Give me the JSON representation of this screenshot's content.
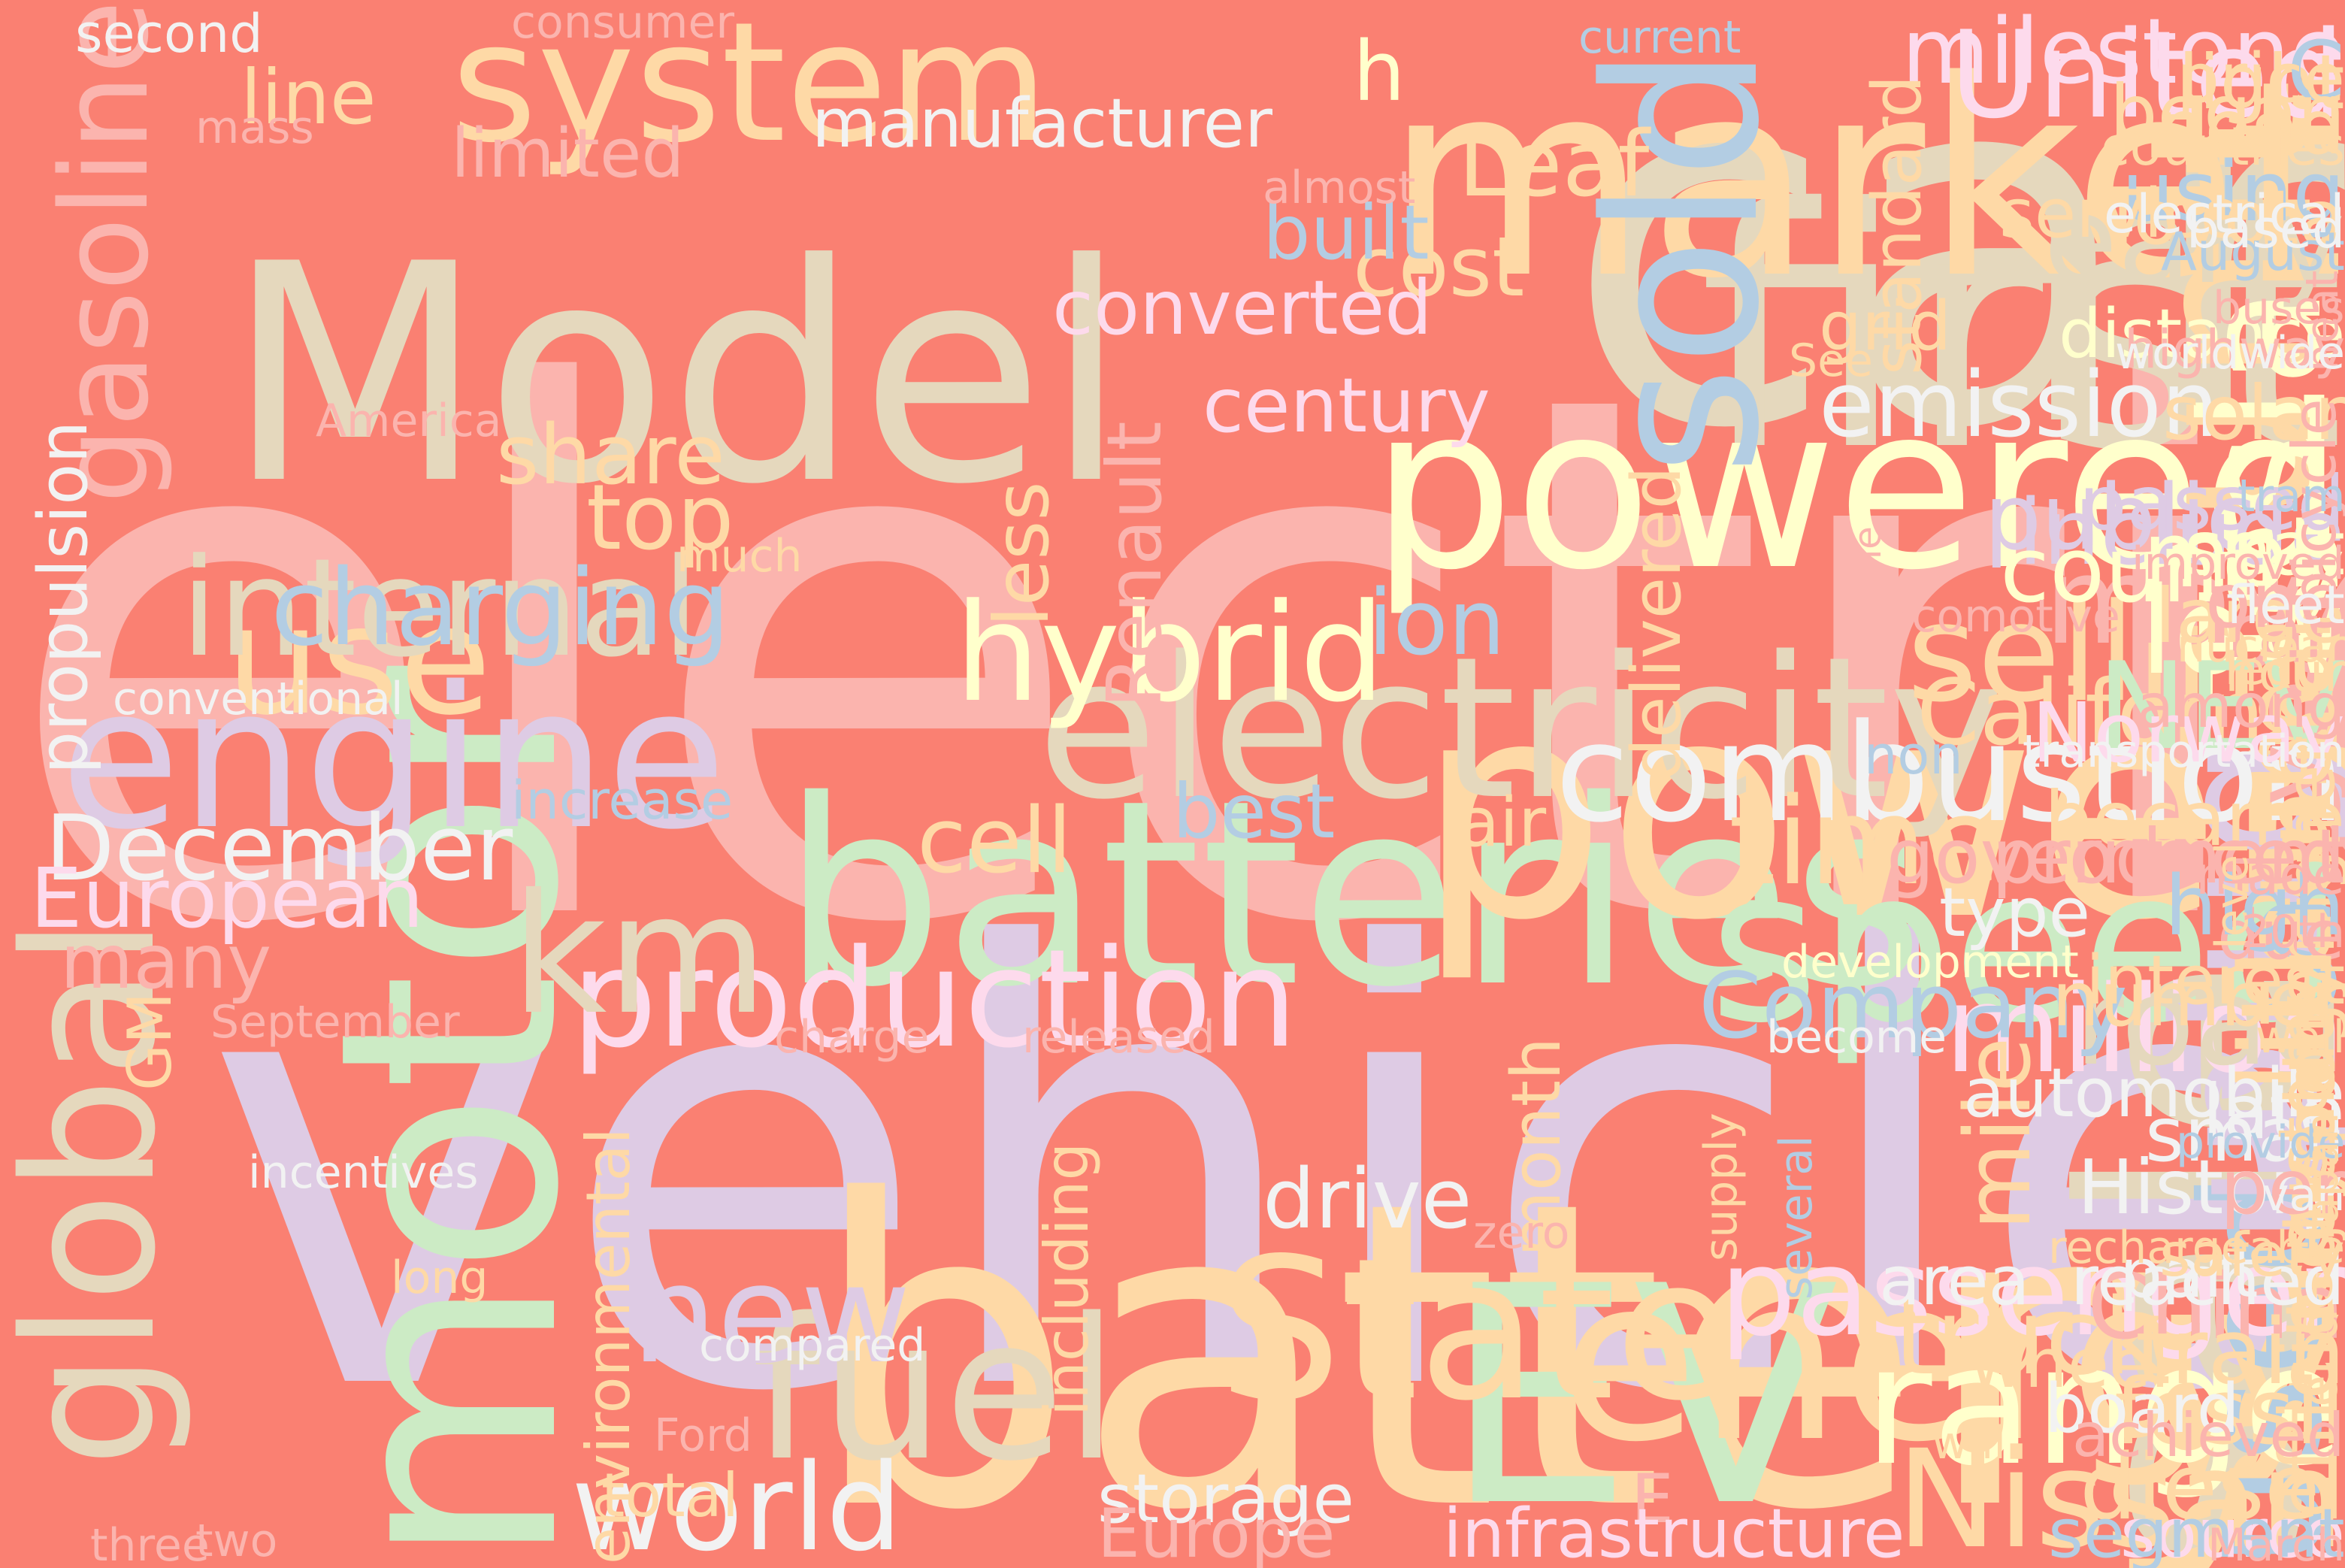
{
  "background": "#FA8072",
  "palette": [
    "#FBB4AE",
    "#B3CDE3",
    "#CCEBC5",
    "#DECBE4",
    "#FED9A6",
    "#FFFFCC",
    "#E5D8BD",
    "#FDDAEC",
    "#F2F2F2"
  ],
  "words": [
    {
      "text": "electric",
      "color": "#FBB4AE"
    },
    {
      "text": "vehicle",
      "color": "#DECBE4"
    },
    {
      "text": "car",
      "color": "#E5D8BD"
    },
    {
      "text": "battery",
      "color": "#FED9A6"
    },
    {
      "text": "batteries",
      "color": "#CCEBC5"
    },
    {
      "text": "first",
      "color": "#E5D8BD"
    },
    {
      "text": "market",
      "color": "#FED9A6"
    },
    {
      "text": "Model",
      "color": "#E5D8BD"
    },
    {
      "text": "power",
      "color": "#FED9A6"
    },
    {
      "text": "powered",
      "color": "#FFFFCC"
    },
    {
      "text": "sale",
      "color": "#E5D8BD"
    },
    {
      "text": "unit",
      "color": "#FED9A6"
    },
    {
      "text": "EV",
      "color": "#CCEBC5"
    },
    {
      "text": "motor",
      "color": "#CCEBC5"
    },
    {
      "text": "sold",
      "color": "#B3CDE3"
    },
    {
      "text": "energy",
      "color": "#FED9A6"
    },
    {
      "text": "electricity",
      "color": "#E5D8BD"
    },
    {
      "text": "engine",
      "color": "#DECBE4"
    },
    {
      "text": "speed",
      "color": "#CCEBC5"
    },
    {
      "text": "plug",
      "color": "#DECBE4"
    },
    {
      "text": "Tesla",
      "color": "#FFFFCC"
    },
    {
      "text": "system",
      "color": "#FED9A6"
    },
    {
      "text": "State",
      "color": "#FED9A6"
    },
    {
      "text": "fuel",
      "color": "#E5D8BD"
    },
    {
      "text": "global",
      "color": "#E5D8BD"
    },
    {
      "text": "combustion",
      "color": "#F2F2F2"
    },
    {
      "text": "range",
      "color": "#FFFFCC"
    },
    {
      "text": "production",
      "color": "#FDDAEC"
    },
    {
      "text": "used",
      "color": "#B3CDE3"
    },
    {
      "text": "use",
      "color": "#FED9A6"
    },
    {
      "text": "hybrid",
      "color": "#FFFFCC"
    },
    {
      "text": "internal",
      "color": "#E5D8BD"
    },
    {
      "text": "km",
      "color": "#E5D8BD"
    },
    {
      "text": "selling",
      "color": "#FED9A6"
    },
    {
      "text": "passenger",
      "color": "#FDDAEC"
    },
    {
      "text": "million",
      "color": "#FDDAEC"
    },
    {
      "text": "Nissan",
      "color": "#FED9A6"
    },
    {
      "text": "United",
      "color": "#FDDAEC"
    },
    {
      "text": "world",
      "color": "#F2F2F2"
    },
    {
      "text": "new",
      "color": "#DECBE4"
    },
    {
      "text": "road",
      "color": "#E5D8BD"
    },
    {
      "text": "S",
      "color": "#B3CDE3"
    },
    {
      "text": "U",
      "color": "#DECBE4"
    },
    {
      "text": "time",
      "color": "#FED9A6"
    },
    {
      "text": "gasoline",
      "color": "#FBB4AE"
    },
    {
      "text": "early",
      "color": "#E5D8BD"
    },
    {
      "text": "lithium",
      "color": "#FED9A6"
    },
    {
      "text": "year",
      "color": "#FBB4AE"
    },
    {
      "text": "truck",
      "color": "#FED9A6"
    },
    {
      "text": "milestone",
      "color": "#FDDAEC"
    },
    {
      "text": "may",
      "color": "#FBB4AE"
    },
    {
      "text": "charging",
      "color": "#B3CDE3"
    },
    {
      "text": "low",
      "color": "#FFFFCC"
    },
    {
      "text": "California",
      "color": "#FED9A6"
    },
    {
      "text": "December",
      "color": "#F2F2F2"
    },
    {
      "text": "emission",
      "color": "#F2F2F2"
    },
    {
      "text": "public",
      "color": "#DECBE4"
    },
    {
      "text": "Leaf",
      "color": "#FED9A6"
    },
    {
      "text": "top",
      "color": "#FED9A6"
    },
    {
      "text": "ion",
      "color": "#B3CDE3"
    },
    {
      "text": "include",
      "color": "#DECBE4"
    },
    {
      "text": "NEV",
      "color": "#CCEBC5"
    },
    {
      "text": "General",
      "color": "#FED9A6"
    },
    {
      "text": "mph",
      "color": "#FFFFCC"
    },
    {
      "text": "China",
      "color": "#FBB4AE"
    },
    {
      "text": "Company",
      "color": "#B3CDE3"
    },
    {
      "text": "mile",
      "color": "#FED9A6"
    },
    {
      "text": "cell",
      "color": "#FED9A6"
    },
    {
      "text": "country",
      "color": "#FFFFCC"
    },
    {
      "text": "train",
      "color": "#FED9A6"
    },
    {
      "text": "fossil",
      "color": "#FED9A6"
    },
    {
      "text": "diesel",
      "color": "#FED9A6"
    },
    {
      "text": "European",
      "color": "#FDDAEC"
    },
    {
      "text": "Renault",
      "color": "#FBB4AE"
    },
    {
      "text": "share",
      "color": "#FED9A6"
    },
    {
      "text": "less",
      "color": "#FED9A6"
    },
    {
      "text": "Norway",
      "color": "#FDDAEC"
    },
    {
      "text": "efficiency",
      "color": "#FED9A6"
    },
    {
      "text": "cost",
      "color": "#FED9A6"
    },
    {
      "text": "converted",
      "color": "#FDDAEC"
    },
    {
      "text": "built",
      "color": "#B3CDE3"
    },
    {
      "text": "century",
      "color": "#FDDAEC"
    },
    {
      "text": "h",
      "color": "#FFFFCC"
    },
    {
      "text": "light",
      "color": "#FED9A6"
    },
    {
      "text": "C",
      "color": "#B3CDE3"
    },
    {
      "text": "price",
      "color": "#FED9A6"
    },
    {
      "text": "need",
      "color": "#FED9A6"
    },
    {
      "text": "began",
      "color": "#FED9A6"
    },
    {
      "text": "using",
      "color": "#B3CDE3"
    },
    {
      "text": "Toyota",
      "color": "#FED9A6"
    },
    {
      "text": "distance",
      "color": "#FFFFCC"
    },
    {
      "text": "solar",
      "color": "#FED9A6"
    },
    {
      "text": "rail",
      "color": "#FBB4AE"
    },
    {
      "text": "seat",
      "color": "#FFFFCC"
    },
    {
      "text": "large",
      "color": "#FED9A6"
    },
    {
      "text": "passed",
      "color": "#DECBE4"
    },
    {
      "text": "one",
      "color": "#FBB4AE"
    },
    {
      "text": "delivered",
      "color": "#FED9A6"
    },
    {
      "text": "standard",
      "color": "#FED9A6"
    },
    {
      "text": "grid",
      "color": "#FED9A6"
    },
    {
      "text": "service",
      "color": "#FED9A6"
    },
    {
      "text": "line",
      "color": "#FED9A6"
    },
    {
      "text": "manufacturer",
      "color": "#F2F2F2"
    },
    {
      "text": "limited",
      "color": "#FBB4AE"
    },
    {
      "text": "propulsion",
      "color": "#F2F2F2"
    },
    {
      "text": "best",
      "color": "#B3CDE3"
    },
    {
      "text": "air",
      "color": "#FED9A6"
    },
    {
      "text": "became",
      "color": "#FED9A6"
    },
    {
      "text": "higher",
      "color": "#FED9A6"
    },
    {
      "text": "government",
      "color": "#FBB4AE"
    },
    {
      "text": "produced",
      "color": "#FBB4AE"
    },
    {
      "text": "type",
      "color": "#F2F2F2"
    },
    {
      "text": "due",
      "color": "#FBB4AE"
    },
    {
      "text": "interest",
      "color": "#FED9A6"
    },
    {
      "text": "high",
      "color": "#B3CDE3"
    },
    {
      "text": "number",
      "color": "#FED9A6"
    },
    {
      "text": "automobile",
      "color": "#F2F2F2"
    },
    {
      "text": "small",
      "color": "#F2F2F2"
    },
    {
      "text": "late",
      "color": "#F2F2F2"
    },
    {
      "text": "History",
      "color": "#F2F2F2"
    },
    {
      "text": "drive",
      "color": "#F2F2F2"
    },
    {
      "text": "customer",
      "color": "#FED9A6"
    },
    {
      "text": "transport",
      "color": "#FED9A6"
    },
    {
      "text": "technology",
      "color": "#FED9A6"
    },
    {
      "text": "record",
      "color": "#FED9A6"
    },
    {
      "text": "month",
      "color": "#FED9A6"
    },
    {
      "text": "per",
      "color": "#FBB4AE"
    },
    {
      "text": "including",
      "color": "#FED9A6"
    },
    {
      "text": "environmental",
      "color": "#FED9A6"
    },
    {
      "text": "many",
      "color": "#FBB4AE"
    },
    {
      "text": "GM",
      "color": "#FED9A6"
    },
    {
      "text": "area",
      "color": "#F2F2F2"
    },
    {
      "text": "part",
      "color": "#F2F2F2"
    },
    {
      "text": "reached",
      "color": "#F2F2F2"
    },
    {
      "text": "wheel",
      "color": "#FED9A6"
    },
    {
      "text": "board",
      "color": "#F2F2F2"
    },
    {
      "text": "storage",
      "color": "#F2F2F2"
    },
    {
      "text": "E",
      "color": "#FBB4AE"
    },
    {
      "text": "Europe",
      "color": "#FBB4AE"
    },
    {
      "text": "infrastructure",
      "color": "#FDDAEC"
    },
    {
      "text": "source",
      "color": "#FDDAEC"
    },
    {
      "text": "segment",
      "color": "#B3CDE3"
    },
    {
      "text": "total",
      "color": "#FED9A6"
    },
    {
      "text": "safety",
      "color": "#FED9A6"
    },
    {
      "text": "achieved",
      "color": "#FBB4AE"
    },
    {
      "text": "end",
      "color": "#FED9A6"
    },
    {
      "text": "among",
      "color": "#FBB4AE"
    },
    {
      "text": "made",
      "color": "#FBB4AE"
    },
    {
      "text": "transportation",
      "color": "#F2F2F2"
    },
    {
      "text": "bicycle",
      "color": "#FBB4AE"
    },
    {
      "text": "tram",
      "color": "#B3CDE3"
    },
    {
      "text": "improved",
      "color": "#FBB4AE"
    },
    {
      "text": "fleet",
      "color": "#F2F2F2"
    },
    {
      "text": "hour",
      "color": "#FED9A6"
    },
    {
      "text": "highway",
      "color": "#FBB4AE"
    },
    {
      "text": "August",
      "color": "#B3CDE3"
    },
    {
      "text": "based",
      "color": "#F2F2F2"
    },
    {
      "text": "electrical",
      "color": "#F2F2F2"
    },
    {
      "text": "countries",
      "color": "#FED9A6"
    },
    {
      "text": "current",
      "color": "#B3CDE3"
    },
    {
      "text": "consumer",
      "color": "#FBB4AE"
    },
    {
      "text": "second",
      "color": "#F2F2F2"
    },
    {
      "text": "mass",
      "color": "#FBB4AE"
    },
    {
      "text": "almost",
      "color": "#FBB4AE"
    },
    {
      "text": "America",
      "color": "#FBB4AE"
    },
    {
      "text": "See",
      "color": "#FED9A6"
    },
    {
      "text": "heat",
      "color": "#FBB4AE"
    },
    {
      "text": "buses",
      "color": "#FBB4AE"
    },
    {
      "text": "worldwide",
      "color": "#F2F2F2"
    },
    {
      "text": "much",
      "color": "#FED9A6"
    },
    {
      "text": "June",
      "color": "#FBB4AE"
    },
    {
      "text": "locomotive",
      "color": "#FBB4AE"
    },
    {
      "text": "nuclear",
      "color": "#FED9A6"
    },
    {
      "text": "led",
      "color": "#FED9A6"
    },
    {
      "text": "conventional",
      "color": "#F2F2F2"
    },
    {
      "text": "non",
      "color": "#B3CDE3"
    },
    {
      "text": "increase",
      "color": "#B3CDE3"
    },
    {
      "text": "development",
      "color": "#FFFFCC"
    },
    {
      "text": "level",
      "color": "#FED9A6"
    },
    {
      "text": "20th",
      "color": "#FBB4AE"
    },
    {
      "text": "September",
      "color": "#FBB4AE"
    },
    {
      "text": "charge",
      "color": "#FBB4AE"
    },
    {
      "text": "released",
      "color": "#FBB4AE"
    },
    {
      "text": "become",
      "color": "#F2F2F2"
    },
    {
      "text": "well",
      "color": "#FED9A6"
    },
    {
      "text": "provide",
      "color": "#B3CDE3"
    },
    {
      "text": "incentives",
      "color": "#F2F2F2"
    },
    {
      "text": "supply",
      "color": "#FED9A6"
    },
    {
      "text": "several",
      "color": "#B3CDE3"
    },
    {
      "text": "zero",
      "color": "#FBB4AE"
    },
    {
      "text": "van",
      "color": "#F2F2F2"
    },
    {
      "text": "Japan",
      "color": "#FED9A6"
    },
    {
      "text": "rechargeable",
      "color": "#FED9A6"
    },
    {
      "text": "long",
      "color": "#FED9A6"
    },
    {
      "text": "compared",
      "color": "#F2F2F2"
    },
    {
      "text": "Ford",
      "color": "#FBB4AE"
    },
    {
      "text": "will",
      "color": "#FED9A6"
    },
    {
      "text": "two",
      "color": "#FBB4AE"
    },
    {
      "text": "three",
      "color": "#FBB4AE"
    },
    {
      "text": "March",
      "color": "#FBB4AE"
    }
  ]
}
